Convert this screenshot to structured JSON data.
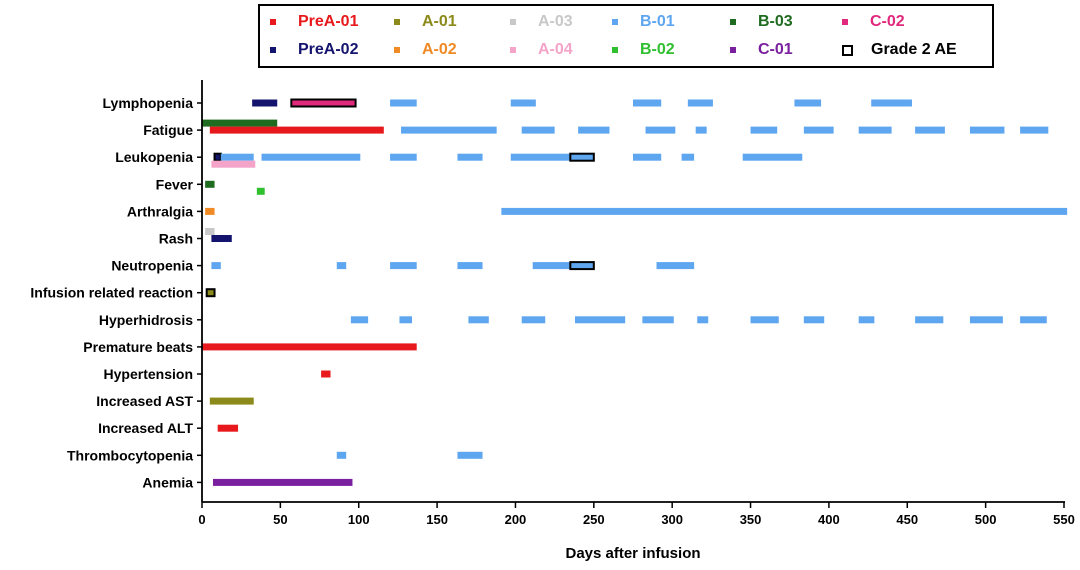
{
  "legend": [
    {
      "name": "PreA-01",
      "color": "#e8191c"
    },
    {
      "name": "A-01",
      "color": "#8b8a1a"
    },
    {
      "name": "A-03",
      "color": "#c8c8c8"
    },
    {
      "name": "B-01",
      "color": "#5ea6f0"
    },
    {
      "name": "B-03",
      "color": "#1f6b1f"
    },
    {
      "name": "C-02",
      "color": "#e0287c"
    },
    {
      "name": "PreA-02",
      "color": "#14146e"
    },
    {
      "name": "A-02",
      "color": "#f08a24"
    },
    {
      "name": "A-04",
      "color": "#f3a4c8"
    },
    {
      "name": "B-02",
      "color": "#2fbf2f"
    },
    {
      "name": "C-01",
      "color": "#7a1f9e"
    },
    {
      "name": "Grade 2 AE",
      "color": "#000000"
    }
  ],
  "chart_data": {
    "type": "bar",
    "subtype": "gantt-timeline",
    "xlabel": "Days after infusion",
    "xlim": [
      0,
      550
    ],
    "xticks": [
      0,
      50,
      100,
      150,
      200,
      250,
      300,
      350,
      400,
      450,
      500,
      550
    ],
    "categories": [
      "Lymphopenia",
      "Fatigue",
      "Leukopenia",
      "Fever",
      "Arthralgia",
      "Rash",
      "Neutropenia",
      "Infusion related reaction",
      "Hyperhidrosis",
      "Premature beats",
      "Hypertension",
      "Increased AST",
      "Increased ALT",
      "Thrombocytopenia",
      "Anemia"
    ],
    "segments": [
      {
        "category": "Lymphopenia",
        "patient": "PreA-02",
        "start": 32,
        "end": 48
      },
      {
        "category": "Lymphopenia",
        "patient": "C-02",
        "start": 57,
        "end": 98,
        "grade2": true
      },
      {
        "category": "Lymphopenia",
        "patient": "B-01",
        "start": 120,
        "end": 137
      },
      {
        "category": "Lymphopenia",
        "patient": "B-01",
        "start": 197,
        "end": 213
      },
      {
        "category": "Lymphopenia",
        "patient": "B-01",
        "start": 275,
        "end": 293
      },
      {
        "category": "Lymphopenia",
        "patient": "B-01",
        "start": 310,
        "end": 326
      },
      {
        "category": "Lymphopenia",
        "patient": "B-01",
        "start": 378,
        "end": 395
      },
      {
        "category": "Lymphopenia",
        "patient": "B-01",
        "start": 427,
        "end": 453
      },
      {
        "category": "Fatigue",
        "patient": "B-03",
        "start": 0,
        "end": 48,
        "offset": -1
      },
      {
        "category": "Fatigue",
        "patient": "PreA-01",
        "start": 5,
        "end": 116
      },
      {
        "category": "Fatigue",
        "patient": "B-01",
        "start": 127,
        "end": 188
      },
      {
        "category": "Fatigue",
        "patient": "B-01",
        "start": 204,
        "end": 225
      },
      {
        "category": "Fatigue",
        "patient": "B-01",
        "start": 240,
        "end": 260
      },
      {
        "category": "Fatigue",
        "patient": "B-01",
        "start": 283,
        "end": 302
      },
      {
        "category": "Fatigue",
        "patient": "B-01",
        "start": 315,
        "end": 322
      },
      {
        "category": "Fatigue",
        "patient": "B-01",
        "start": 350,
        "end": 367
      },
      {
        "category": "Fatigue",
        "patient": "B-01",
        "start": 384,
        "end": 403
      },
      {
        "category": "Fatigue",
        "patient": "B-01",
        "start": 419,
        "end": 440
      },
      {
        "category": "Fatigue",
        "patient": "B-01",
        "start": 455,
        "end": 474
      },
      {
        "category": "Fatigue",
        "patient": "B-01",
        "start": 490,
        "end": 512
      },
      {
        "category": "Fatigue",
        "patient": "B-01",
        "start": 522,
        "end": 540
      },
      {
        "category": "Leukopenia",
        "patient": "PreA-02",
        "start": 8,
        "end": 12,
        "grade2": true
      },
      {
        "category": "Leukopenia",
        "patient": "B-01",
        "start": 12,
        "end": 33
      },
      {
        "category": "Leukopenia",
        "patient": "B-01",
        "start": 38,
        "end": 101
      },
      {
        "category": "Leukopenia",
        "patient": "B-01",
        "start": 120,
        "end": 137
      },
      {
        "category": "Leukopenia",
        "patient": "B-01",
        "start": 163,
        "end": 179
      },
      {
        "category": "Leukopenia",
        "patient": "B-01",
        "start": 197,
        "end": 235
      },
      {
        "category": "Leukopenia",
        "patient": "B-01",
        "start": 235,
        "end": 250,
        "grade2": true
      },
      {
        "category": "Leukopenia",
        "patient": "B-01",
        "start": 275,
        "end": 293
      },
      {
        "category": "Leukopenia",
        "patient": "B-01",
        "start": 306,
        "end": 314
      },
      {
        "category": "Leukopenia",
        "patient": "B-01",
        "start": 345,
        "end": 383
      },
      {
        "category": "Leukopenia",
        "patient": "A-04",
        "start": 6,
        "end": 34,
        "offset": 1
      },
      {
        "category": "Fever",
        "patient": "B-03",
        "start": 2,
        "end": 8
      },
      {
        "category": "Fever",
        "patient": "B-02",
        "start": 35,
        "end": 40,
        "offset": 1
      },
      {
        "category": "Arthralgia",
        "patient": "A-02",
        "start": 2,
        "end": 8
      },
      {
        "category": "Arthralgia",
        "patient": "B-01",
        "start": 191,
        "end": 552
      },
      {
        "category": "Rash",
        "patient": "A-03",
        "start": 2,
        "end": 8,
        "offset": -1
      },
      {
        "category": "Rash",
        "patient": "PreA-02",
        "start": 6,
        "end": 19
      },
      {
        "category": "Neutropenia",
        "patient": "B-01",
        "start": 6,
        "end": 12
      },
      {
        "category": "Neutropenia",
        "patient": "B-01",
        "start": 86,
        "end": 92
      },
      {
        "category": "Neutropenia",
        "patient": "B-01",
        "start": 120,
        "end": 137
      },
      {
        "category": "Neutropenia",
        "patient": "B-01",
        "start": 163,
        "end": 179
      },
      {
        "category": "Neutropenia",
        "patient": "B-01",
        "start": 211,
        "end": 235
      },
      {
        "category": "Neutropenia",
        "patient": "B-01",
        "start": 235,
        "end": 250,
        "grade2": true
      },
      {
        "category": "Neutropenia",
        "patient": "B-01",
        "start": 290,
        "end": 314
      },
      {
        "category": "Infusion related reaction",
        "patient": "A-01",
        "start": 3,
        "end": 8,
        "grade2": true
      },
      {
        "category": "Hyperhidrosis",
        "patient": "B-01",
        "start": 95,
        "end": 106
      },
      {
        "category": "Hyperhidrosis",
        "patient": "B-01",
        "start": 126,
        "end": 134
      },
      {
        "category": "Hyperhidrosis",
        "patient": "B-01",
        "start": 170,
        "end": 183
      },
      {
        "category": "Hyperhidrosis",
        "patient": "B-01",
        "start": 204,
        "end": 219
      },
      {
        "category": "Hyperhidrosis",
        "patient": "B-01",
        "start": 238,
        "end": 270
      },
      {
        "category": "Hyperhidrosis",
        "patient": "B-01",
        "start": 281,
        "end": 301
      },
      {
        "category": "Hyperhidrosis",
        "patient": "B-01",
        "start": 316,
        "end": 323
      },
      {
        "category": "Hyperhidrosis",
        "patient": "B-01",
        "start": 350,
        "end": 368
      },
      {
        "category": "Hyperhidrosis",
        "patient": "B-01",
        "start": 384,
        "end": 397
      },
      {
        "category": "Hyperhidrosis",
        "patient": "B-01",
        "start": 419,
        "end": 429
      },
      {
        "category": "Hyperhidrosis",
        "patient": "B-01",
        "start": 455,
        "end": 473
      },
      {
        "category": "Hyperhidrosis",
        "patient": "B-01",
        "start": 490,
        "end": 511
      },
      {
        "category": "Hyperhidrosis",
        "patient": "B-01",
        "start": 522,
        "end": 539
      },
      {
        "category": "Premature beats",
        "patient": "PreA-01",
        "start": 0,
        "end": 137
      },
      {
        "category": "Hypertension",
        "patient": "PreA-01",
        "start": 76,
        "end": 82
      },
      {
        "category": "Increased AST",
        "patient": "A-01",
        "start": 5,
        "end": 33
      },
      {
        "category": "Increased ALT",
        "patient": "PreA-01",
        "start": 10,
        "end": 23
      },
      {
        "category": "Thrombocytopenia",
        "patient": "B-01",
        "start": 86,
        "end": 92
      },
      {
        "category": "Thrombocytopenia",
        "patient": "B-01",
        "start": 163,
        "end": 179
      },
      {
        "category": "Anemia",
        "patient": "C-01",
        "start": 7,
        "end": 96
      }
    ]
  }
}
